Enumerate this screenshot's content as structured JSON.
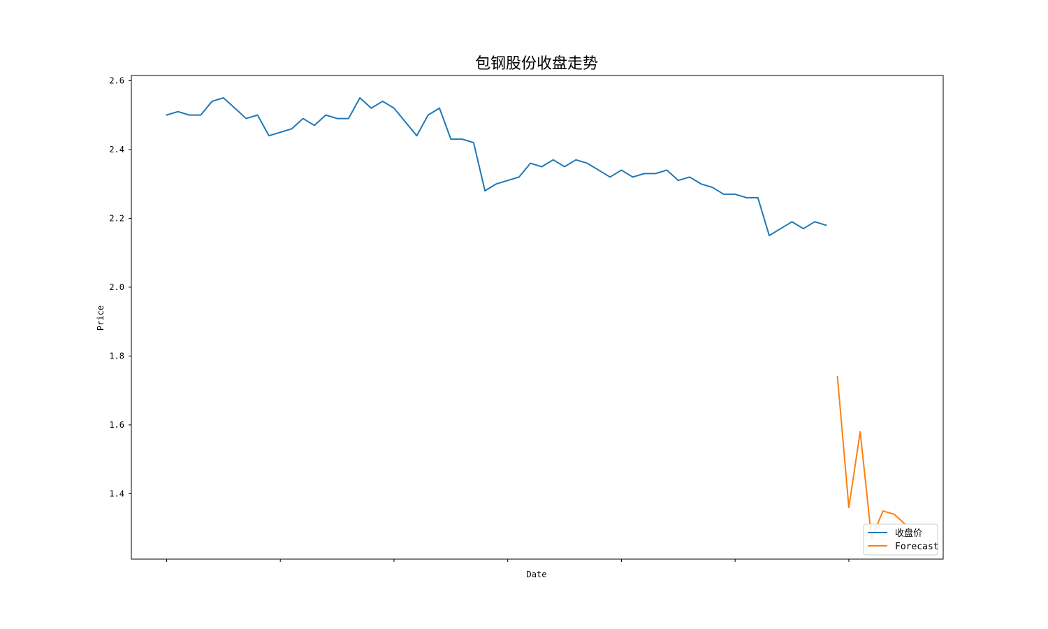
{
  "chart_data": {
    "type": "line",
    "title": "包钢股份收盘走势",
    "xlabel": "Date",
    "ylabel": "Price",
    "ylim": [
      1.21,
      2.615
    ],
    "yticks": [
      1.4,
      1.6,
      1.8,
      2.0,
      2.2,
      2.4,
      2.6
    ],
    "ytick_labels": [
      "1.4",
      "1.6",
      "1.8",
      "2.0",
      "2.2",
      "2.4",
      "2.6"
    ],
    "xlim": [
      -3.1,
      68.3
    ],
    "xticks": [
      0,
      10,
      20,
      30,
      40,
      50,
      60
    ],
    "xtick_labels": [
      "",
      "",
      "",
      "",
      "",
      "",
      ""
    ],
    "grid": false,
    "legend_position": "lower-right",
    "series": [
      {
        "name": "收盘价",
        "color": "#1f77b4",
        "x": [
          0,
          1,
          2,
          3,
          4,
          5,
          6,
          7,
          8,
          9,
          10,
          11,
          12,
          13,
          14,
          15,
          16,
          17,
          18,
          19,
          20,
          21,
          22,
          23,
          24,
          25,
          26,
          27,
          28,
          29,
          30,
          31,
          32,
          33,
          34,
          35,
          36,
          37,
          38,
          39,
          40,
          41,
          42,
          43,
          44,
          45,
          46,
          47,
          48,
          49,
          50,
          51,
          52,
          53,
          54,
          55,
          56,
          57,
          58
        ],
        "values": [
          2.5,
          2.51,
          2.5,
          2.5,
          2.54,
          2.55,
          2.52,
          2.49,
          2.5,
          2.44,
          2.45,
          2.46,
          2.49,
          2.47,
          2.5,
          2.49,
          2.49,
          2.55,
          2.52,
          2.54,
          2.52,
          2.48,
          2.44,
          2.5,
          2.52,
          2.43,
          2.43,
          2.42,
          2.28,
          2.3,
          2.31,
          2.32,
          2.36,
          2.35,
          2.37,
          2.35,
          2.37,
          2.36,
          2.34,
          2.32,
          2.34,
          2.32,
          2.33,
          2.33,
          2.34,
          2.31,
          2.32,
          2.3,
          2.29,
          2.27,
          2.27,
          2.26,
          2.26,
          2.15,
          2.17,
          2.19,
          2.17,
          2.19,
          2.18
        ]
      },
      {
        "name": "Forecast",
        "color": "#ff7f0e",
        "x": [
          59,
          60,
          61,
          62,
          63,
          64,
          65
        ],
        "values": [
          1.74,
          1.36,
          1.58,
          1.27,
          1.35,
          1.34,
          1.31
        ]
      }
    ]
  }
}
